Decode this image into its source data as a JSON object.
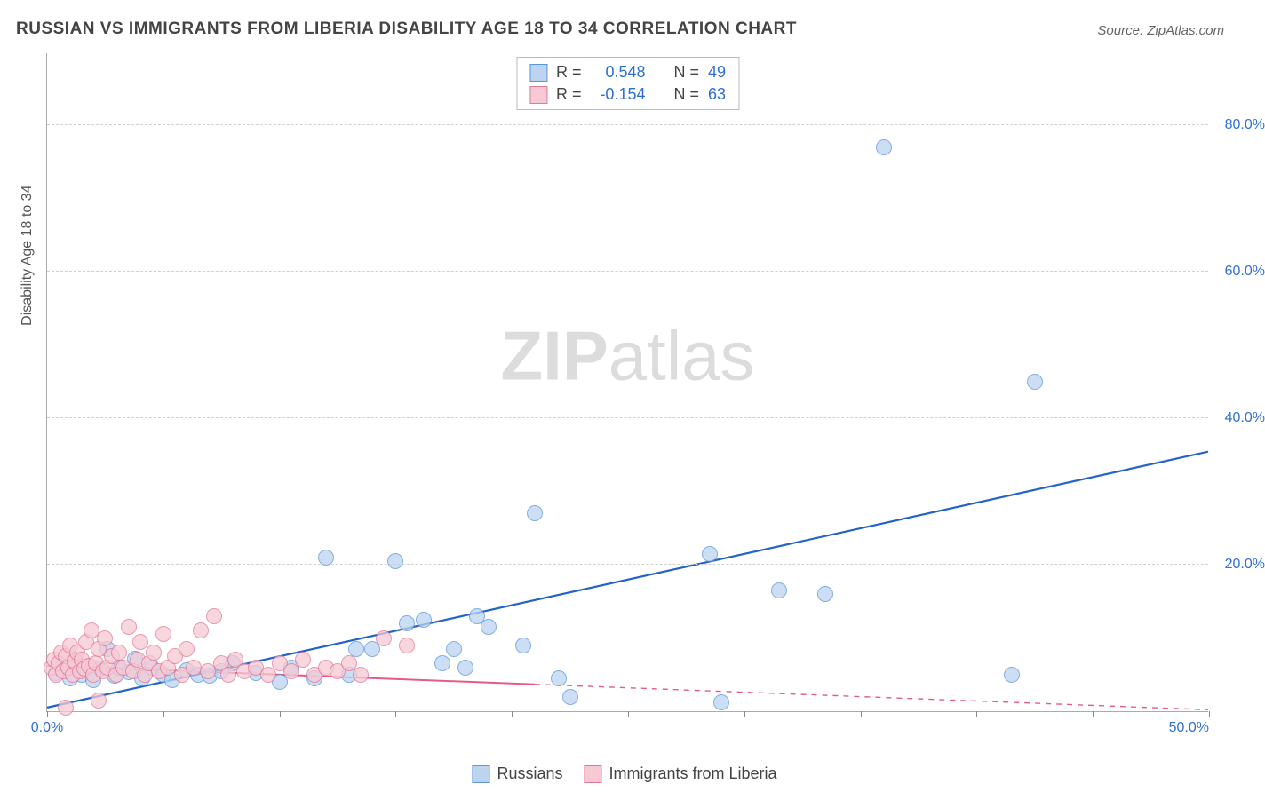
{
  "title": "RUSSIAN VS IMMIGRANTS FROM LIBERIA DISABILITY AGE 18 TO 34 CORRELATION CHART",
  "source_prefix": "Source: ",
  "source_link": "ZipAtlas.com",
  "y_axis_label": "Disability Age 18 to 34",
  "watermark_zip": "ZIP",
  "watermark_atlas": "atlas",
  "chart": {
    "type": "scatter",
    "xlim": [
      0,
      50
    ],
    "ylim": [
      0,
      90
    ],
    "x_ticks": [
      0,
      5,
      10,
      15,
      20,
      25,
      30,
      35,
      40,
      45,
      50
    ],
    "x_tick_labels": {
      "0": "0.0%",
      "50": "50.0%"
    },
    "x_tick_label_color_left": "#2f6fd4",
    "x_tick_label_color_right": "#2f6fd4",
    "y_ticks": [
      20,
      40,
      60,
      80
    ],
    "y_tick_labels": {
      "20": "20.0%",
      "40": "40.0%",
      "60": "60.0%",
      "80": "80.0%"
    },
    "y_tick_label_color": "#2f6fd4",
    "grid_color": "#d0d0d0",
    "background_color": "#ffffff",
    "series": [
      {
        "key": "russians",
        "label": "Russians",
        "marker_fill": "#bcd4f0",
        "marker_stroke": "#5a94db",
        "marker_opacity": 0.75,
        "marker_radius": 9,
        "trend": {
          "x1": 0,
          "y1": 0.5,
          "x2": 50,
          "y2": 35.5,
          "color": "#2362c9",
          "width": 2.2,
          "dash_after_x": null
        },
        "R_label": "R =",
        "R_value": "0.548",
        "N_label": "N =",
        "N_value": "49",
        "points": [
          [
            0.4,
            5.2
          ],
          [
            0.6,
            6.0
          ],
          [
            1.0,
            4.5
          ],
          [
            1.2,
            7.0
          ],
          [
            1.5,
            5.0
          ],
          [
            1.8,
            6.2
          ],
          [
            2.0,
            4.2
          ],
          [
            2.3,
            5.8
          ],
          [
            2.6,
            8.5
          ],
          [
            2.9,
            4.8
          ],
          [
            3.1,
            6.0
          ],
          [
            3.5,
            5.3
          ],
          [
            3.8,
            7.2
          ],
          [
            4.1,
            4.5
          ],
          [
            4.5,
            6.0
          ],
          [
            5.0,
            5.0
          ],
          [
            5.4,
            4.2
          ],
          [
            6.0,
            5.6
          ],
          [
            6.5,
            5.0
          ],
          [
            7.0,
            4.8
          ],
          [
            7.5,
            5.5
          ],
          [
            8.0,
            6.5
          ],
          [
            9.0,
            5.2
          ],
          [
            10.0,
            4.0
          ],
          [
            10.5,
            6.0
          ],
          [
            11.5,
            4.5
          ],
          [
            12.0,
            21.0
          ],
          [
            13.0,
            5.0
          ],
          [
            13.3,
            8.5
          ],
          [
            14.0,
            8.5
          ],
          [
            15.0,
            20.5
          ],
          [
            15.5,
            12.0
          ],
          [
            16.2,
            12.5
          ],
          [
            17.0,
            6.5
          ],
          [
            17.5,
            8.5
          ],
          [
            18.0,
            6.0
          ],
          [
            18.5,
            13.0
          ],
          [
            19.0,
            11.5
          ],
          [
            20.5,
            9.0
          ],
          [
            21.0,
            27.0
          ],
          [
            22.0,
            4.5
          ],
          [
            22.5,
            2.0
          ],
          [
            28.5,
            21.5
          ],
          [
            29.0,
            1.2
          ],
          [
            31.5,
            16.5
          ],
          [
            33.5,
            16.0
          ],
          [
            36.0,
            77.0
          ],
          [
            41.5,
            5.0
          ],
          [
            42.5,
            45.0
          ]
        ]
      },
      {
        "key": "liberia",
        "label": "Immigrants from Liberia",
        "marker_fill": "#f6c9d4",
        "marker_stroke": "#e37796",
        "marker_opacity": 0.75,
        "marker_radius": 9,
        "trend": {
          "x1": 0,
          "y1": 6.2,
          "x2": 50,
          "y2": 0.2,
          "color": "#e65a8a",
          "width": 2,
          "dash_after_x": 21
        },
        "R_label": "R =",
        "R_value": "-0.154",
        "N_label": "N =",
        "N_value": "63",
        "points": [
          [
            0.2,
            6.0
          ],
          [
            0.3,
            7.0
          ],
          [
            0.4,
            5.0
          ],
          [
            0.5,
            6.5
          ],
          [
            0.6,
            8.0
          ],
          [
            0.7,
            5.5
          ],
          [
            0.8,
            7.5
          ],
          [
            0.9,
            6.0
          ],
          [
            1.0,
            9.0
          ],
          [
            1.1,
            5.0
          ],
          [
            1.2,
            6.8
          ],
          [
            1.3,
            8.0
          ],
          [
            1.4,
            5.5
          ],
          [
            1.5,
            7.0
          ],
          [
            1.6,
            5.8
          ],
          [
            1.7,
            9.5
          ],
          [
            1.8,
            6.2
          ],
          [
            1.9,
            11.0
          ],
          [
            2.0,
            5.0
          ],
          [
            2.1,
            6.5
          ],
          [
            2.2,
            8.5
          ],
          [
            2.4,
            5.5
          ],
          [
            2.5,
            10.0
          ],
          [
            2.6,
            6.0
          ],
          [
            2.8,
            7.5
          ],
          [
            3.0,
            5.0
          ],
          [
            3.1,
            8.0
          ],
          [
            3.3,
            6.0
          ],
          [
            3.5,
            11.5
          ],
          [
            3.7,
            5.5
          ],
          [
            3.9,
            7.0
          ],
          [
            4.0,
            9.5
          ],
          [
            4.2,
            5.0
          ],
          [
            4.4,
            6.5
          ],
          [
            4.6,
            8.0
          ],
          [
            4.8,
            5.5
          ],
          [
            5.0,
            10.5
          ],
          [
            5.2,
            6.0
          ],
          [
            5.5,
            7.5
          ],
          [
            5.8,
            5.0
          ],
          [
            6.0,
            8.5
          ],
          [
            6.3,
            6.0
          ],
          [
            6.6,
            11.0
          ],
          [
            6.9,
            5.5
          ],
          [
            7.2,
            13.0
          ],
          [
            7.5,
            6.5
          ],
          [
            7.8,
            5.0
          ],
          [
            8.1,
            7.0
          ],
          [
            8.5,
            5.5
          ],
          [
            9.0,
            6.0
          ],
          [
            9.5,
            5.0
          ],
          [
            10.0,
            6.5
          ],
          [
            10.5,
            5.5
          ],
          [
            11.0,
            7.0
          ],
          [
            11.5,
            5.0
          ],
          [
            12.0,
            6.0
          ],
          [
            12.5,
            5.5
          ],
          [
            13.0,
            6.5
          ],
          [
            13.5,
            5.0
          ],
          [
            14.5,
            10.0
          ],
          [
            15.5,
            9.0
          ],
          [
            0.8,
            0.5
          ],
          [
            2.2,
            1.5
          ]
        ]
      }
    ]
  },
  "legend_top_stat_color": "#2f6fd4",
  "bottom_legend": [
    {
      "key": "russians",
      "label": "Russians"
    },
    {
      "key": "liberia",
      "label": "Immigrants from Liberia"
    }
  ]
}
